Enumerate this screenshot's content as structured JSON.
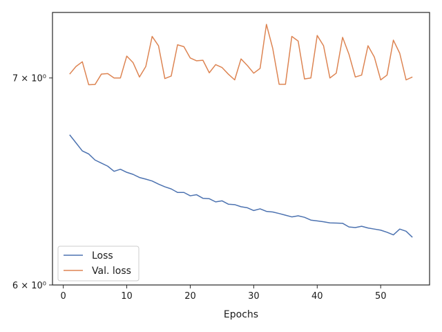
{
  "chart_data": {
    "type": "line",
    "xlabel": "Epochs",
    "ylabel": "",
    "yscale": "log",
    "xlim": [
      -1.7,
      57.7
    ],
    "ylim": [
      6.0,
      7.35
    ],
    "x_ticks": [
      0,
      10,
      20,
      30,
      40,
      50
    ],
    "x_tick_labels": [
      "0",
      "10",
      "20",
      "30",
      "40",
      "50"
    ],
    "y_ticks": [
      6,
      7
    ],
    "y_tick_labels": [
      "6 × 10⁰",
      "7 × 10⁰"
    ],
    "grid": false,
    "legend_position": "lower-left",
    "x": [
      1,
      2,
      3,
      4,
      5,
      6,
      7,
      8,
      9,
      10,
      11,
      12,
      13,
      14,
      15,
      16,
      17,
      18,
      19,
      20,
      21,
      22,
      23,
      24,
      25,
      26,
      27,
      28,
      29,
      30,
      31,
      32,
      33,
      34,
      35,
      36,
      37,
      38,
      39,
      40,
      41,
      42,
      43,
      44,
      45,
      46,
      47,
      48,
      49,
      50,
      51,
      52,
      53,
      54,
      55
    ],
    "series": [
      {
        "name": "Loss",
        "color": "#4c72b0",
        "values": [
          6.71,
          6.67,
          6.63,
          6.615,
          6.585,
          6.57,
          6.555,
          6.53,
          6.54,
          6.525,
          6.515,
          6.5,
          6.492,
          6.483,
          6.468,
          6.455,
          6.445,
          6.428,
          6.428,
          6.412,
          6.417,
          6.4,
          6.398,
          6.383,
          6.388,
          6.372,
          6.37,
          6.36,
          6.355,
          6.342,
          6.35,
          6.338,
          6.335,
          6.328,
          6.32,
          6.312,
          6.317,
          6.31,
          6.297,
          6.293,
          6.289,
          6.284,
          6.283,
          6.282,
          6.265,
          6.262,
          6.268,
          6.26,
          6.255,
          6.25,
          6.24,
          6.228,
          6.255,
          6.245,
          6.217
        ]
      },
      {
        "name": "Val. loss",
        "color": "#dd8452",
        "values": [
          7.02,
          7.06,
          7.085,
          6.965,
          6.966,
          7.02,
          7.023,
          7.0,
          7.0,
          7.115,
          7.08,
          7.005,
          7.06,
          7.22,
          7.17,
          6.997,
          7.01,
          7.175,
          7.165,
          7.105,
          7.09,
          7.093,
          7.027,
          7.07,
          7.055,
          7.02,
          6.99,
          7.1,
          7.065,
          7.025,
          7.05,
          7.285,
          7.155,
          6.967,
          6.967,
          7.22,
          7.195,
          6.995,
          7.0,
          7.225,
          7.17,
          7.0,
          7.025,
          7.215,
          7.125,
          7.005,
          7.015,
          7.17,
          7.11,
          6.99,
          7.015,
          7.2,
          7.13,
          6.99,
          7.005
        ]
      }
    ]
  }
}
